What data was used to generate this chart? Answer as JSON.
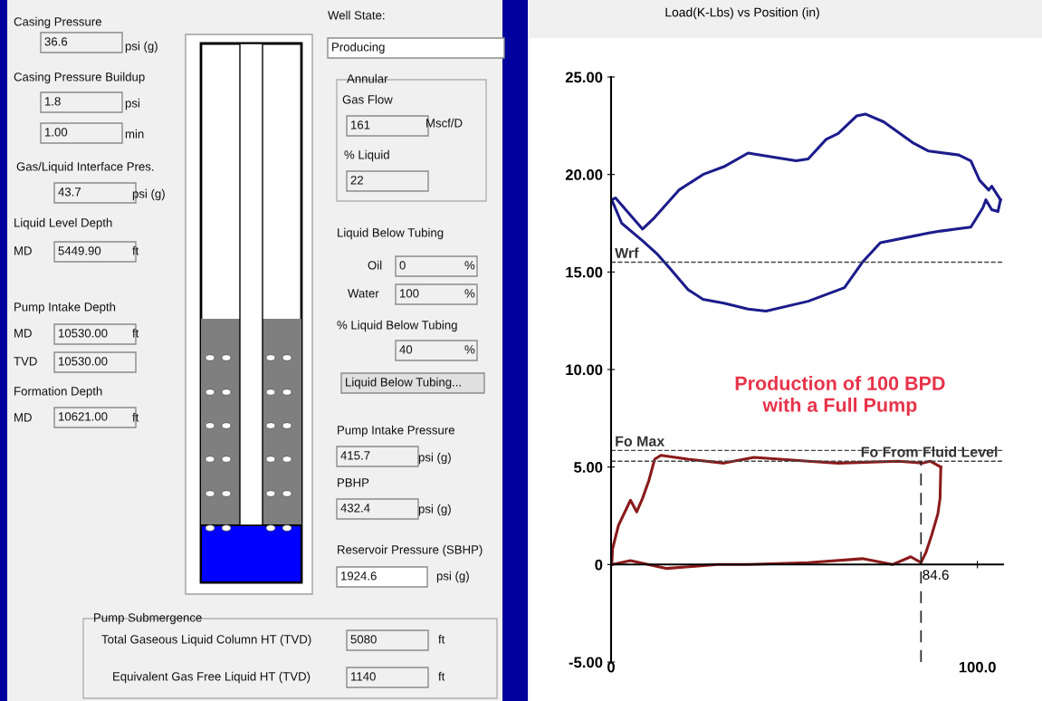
{
  "chart_data": [
    {
      "type": "other",
      "annotations": [
        "Casing Pressure",
        "36.6",
        "psi (g)",
        "Casing Pressure Buildup",
        "1.8",
        "psi",
        "1.00",
        "min",
        "Gas/Liquid Interface Pres.",
        "43.7",
        "psi (g)",
        "Liquid Level Depth",
        "MD",
        "5449.90",
        "ft",
        "Pump Intake Depth",
        "MD",
        "10530.00",
        "ft",
        "TVD",
        "10530.00",
        "Formation Depth",
        "MD",
        "10621.00",
        "ft",
        "Well State:",
        "Producing",
        "Annular",
        "Gas Flow",
        "161",
        "Mscf/D",
        "% Liquid",
        "22",
        "Liquid Below Tubing",
        "Oil",
        "0",
        "%",
        "Water",
        "100",
        "%",
        "% Liquid Below Tubing",
        "40",
        "%",
        "Liquid Below Tubing...",
        "Pump Intake Pressure",
        "415.7",
        "psi (g)",
        "PBHP",
        "432.4",
        "psi (g)",
        "Reservoir Pressure (SBHP)",
        "1924.6",
        "psi (g)",
        "Pump Submergence",
        "Total Gaseous Liquid Column HT (TVD)",
        "5080",
        "ft",
        "Equivalent Gas Free Liquid HT (TVD)",
        "1140",
        "ft"
      ]
    },
    {
      "type": "line",
      "title": "Load(K-Lbs) vs Position (in)",
      "xlim": [
        0,
        107
      ],
      "xticks": [
        0,
        {
          "value": 100,
          "label": "100.0"
        }
      ],
      "ylim": [
        -5,
        25
      ],
      "yticks": [
        {
          "value": -5,
          "label": "-5.00"
        },
        0,
        {
          "value": 5,
          "label": "5.00"
        },
        {
          "value": 10,
          "label": "10.00"
        },
        {
          "value": 15,
          "label": "15.00"
        },
        {
          "value": 20,
          "label": "20.00"
        },
        {
          "value": 25,
          "label": "25.00"
        }
      ],
      "marker": "none",
      "line_style": "solid",
      "series": [
        {
          "color": "#1c1c8c",
          "x": [
            0.2,
            1.2,
            8.6,
            11.9,
            18.5,
            25.1,
            30.8,
            37.4,
            43.9,
            50.5,
            53.8,
            58.7,
            62.0,
            67.0,
            69.4,
            74.4,
            82.6,
            86.7,
            94.9,
            98.2,
            100.6,
            103.1,
            103.9,
            106.3
          ],
          "values": [
            18.7,
            18.8,
            17.2,
            17.8,
            19.2,
            20.0,
            20.4,
            21.1,
            20.9,
            20.7,
            20.8,
            21.8,
            22.1,
            23.0,
            23.1,
            22.7,
            21.6,
            21.2,
            21.0,
            20.7,
            19.7,
            19.2,
            19.4,
            18.7
          ]
        },
        {
          "color": "#1c1c8c",
          "x": [
            106.3,
            105.6,
            103.9,
            102.3,
            101.5,
            98.2,
            90.0,
            86.7,
            73.5,
            68.6,
            63.7,
            53.8,
            42.3,
            37.4,
            30.8,
            25.1,
            21.0,
            16.0,
            12.7,
            8.6,
            2.9,
            0.2
          ],
          "values": [
            18.7,
            18.1,
            18.2,
            18.7,
            18.3,
            17.3,
            17.1,
            17.0,
            16.5,
            15.5,
            14.2,
            13.5,
            13.0,
            13.1,
            13.4,
            13.6,
            14.1,
            15.2,
            15.9,
            16.6,
            17.5,
            18.7
          ]
        },
        {
          "color": "#8b1a1a",
          "x": [
            0.2,
            0.4,
            2.0,
            5.3,
            7.0,
            8.6,
            10.3,
            11.9,
            13.6,
            21.0,
            30.8,
            39.0,
            53.8,
            62.0,
            78.5,
            85.0,
            87.1,
            90.0
          ],
          "values": [
            0.0,
            0.8,
            2.0,
            3.3,
            2.7,
            3.4,
            4.3,
            5.4,
            5.6,
            5.4,
            5.2,
            5.5,
            5.3,
            5.2,
            5.3,
            5.2,
            5.3,
            5.0
          ]
        },
        {
          "color": "#8b1a1a",
          "x": [
            90.0,
            89.8,
            89.2,
            87.5,
            85.9,
            84.6,
            81.8,
            76.8,
            68.6,
            53.8,
            37.4,
            29.1,
            15.2,
            5.3,
            0.2
          ],
          "values": [
            5.0,
            3.4,
            2.6,
            1.5,
            0.6,
            0.1,
            0.4,
            0.0,
            0.3,
            0.1,
            0.0,
            0.0,
            -0.2,
            0.2,
            0.0
          ]
        }
      ],
      "ref_lines": [
        {
          "axis": "y",
          "value": 15.5,
          "label": "Wrf",
          "color": "#444444",
          "line_style": "dashed"
        },
        {
          "axis": "y",
          "value": 5.85,
          "label": "Fo Max",
          "color": "#444444",
          "line_style": "dashed"
        },
        {
          "axis": "y",
          "value": 5.3,
          "label": "Fo From Fluid Level",
          "color": "#444444",
          "line_style": "dashed"
        },
        {
          "axis": "x",
          "value": 84.6,
          "label": "84.6",
          "color": "#222222",
          "line_style": "dashed"
        }
      ],
      "annotations": [
        "Production of 100 BPD\nwith a Full Pump"
      ]
    }
  ]
}
